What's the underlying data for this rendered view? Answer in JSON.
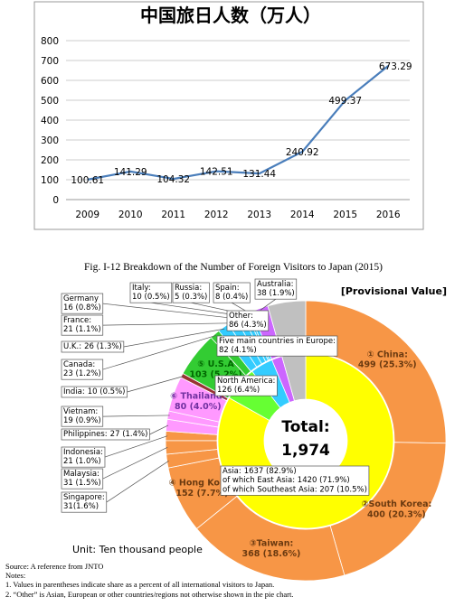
{
  "chart_data": [
    {
      "type": "line",
      "title": "中国旅日人数（万人）",
      "categories": [
        "2009",
        "2010",
        "2011",
        "2012",
        "2013",
        "2014",
        "2015",
        "2016"
      ],
      "values": [
        100.61,
        141.29,
        104.32,
        142.51,
        131.44,
        240.92,
        499.37,
        673.29
      ],
      "color": "#4a7ebb",
      "ylim": [
        0,
        800
      ],
      "yticks": [
        0,
        100,
        200,
        300,
        400,
        500,
        600,
        700,
        800
      ],
      "grid": true
    },
    {
      "type": "donut",
      "title": "Fig. I-12 Breakdown of the Number of Foreign Visitors to Japan (2015)",
      "subtitle": "[Provisional Value]",
      "center_label": "Total:",
      "total": {
        "value": 1974,
        "label": "1,974"
      },
      "unit_label": "Unit: Ten thousand people",
      "outer": {
        "categories": [
          "① China:",
          "②South Korea:",
          "③Taiwan:",
          "④ Hong Kong:",
          "Singapore:",
          "Malaysia:",
          "Indonesia:",
          "Philippines:",
          "Vietnam:",
          "⑥ Thailand:",
          "India:",
          "⑤ U.S.A",
          "Canada:",
          "U.K.:",
          "France:",
          "Germany",
          "Italy:",
          "Russia:",
          "Spain:",
          "Australia:",
          "Other:"
        ],
        "values": [
          499,
          400,
          368,
          152,
          31,
          31,
          21,
          27,
          19,
          80,
          10,
          103,
          23,
          26,
          21,
          16,
          10,
          5,
          8,
          38,
          86
        ],
        "value_labels": [
          "499 (25.3%)",
          "400 (20.3%)",
          "368 (18.6%)",
          "152 (7.7%)",
          "31(1.6%)",
          "31 (1.5%)",
          "21 (1.0%)",
          "27 (1.4%)",
          "19 (0.9%)",
          "80 (4.0%)",
          "10 (0.5%)",
          "103 (5.2%)",
          "23 (1.2%)",
          "26 (1.3%)",
          "21 (1.1%)",
          "16 (0.8%)",
          "10 (0.5%)",
          "5 (0.3%)",
          "8 (0.4%)",
          "38 (1.9%)",
          "86 (4.3%)"
        ],
        "colors": [
          "#f79646",
          "#f79646",
          "#f79646",
          "#f79646",
          "#f79646",
          "#f79646",
          "#f79646",
          "#ff99ff",
          "#ff99ff",
          "#ff99ff",
          "#993333",
          "#33cc33",
          "#33cc33",
          "#33ccff",
          "#33ccff",
          "#33ccff",
          "#33ccff",
          "#33ccff",
          "#33ccff",
          "#cc66ff",
          "#c0c0c0"
        ]
      },
      "inner": {
        "categories": [
          "Asia:",
          "North America:",
          "Five main countries in Europe:"
        ],
        "values": [
          1637,
          126,
          82
        ],
        "value_labels": [
          "1637 (82.9%)",
          "126 (6.4%)",
          "82 (4.1%)"
        ],
        "colors": [
          "#ffff00",
          "#66ff33",
          "#33ccff"
        ],
        "sub_labels": [
          "of which East Asia: 1420 (71.9%)",
          "of which Southeast Asia: 207 (10.5%)"
        ]
      }
    }
  ],
  "notes": {
    "source": "Source: A reference from JNTO",
    "heading": "Notes:",
    "items": [
      "1. Values in parentheses indicate share as a percent of all international visitors to Japan.",
      "2. “Other” is Asian, European or other countries/regions not otherwise shown in the pie chart."
    ]
  }
}
